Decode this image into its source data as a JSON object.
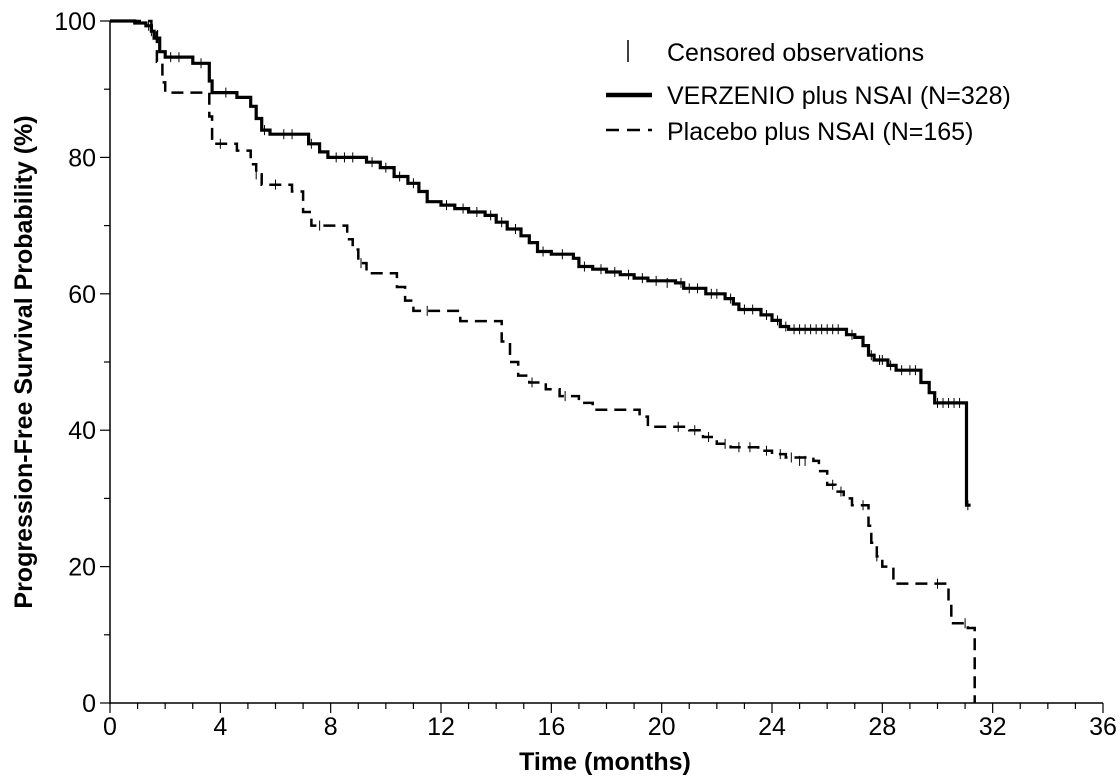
{
  "chart_data": {
    "type": "line",
    "title": "",
    "xlabel": "Time (months)",
    "ylabel": "Progression-Free Survival Probability (%)",
    "xlim": [
      0,
      36
    ],
    "ylim": [
      0,
      100
    ],
    "x_ticks": [
      "0",
      "4",
      "8",
      "12",
      "16",
      "20",
      "24",
      "28",
      "32",
      "36"
    ],
    "y_ticks": [
      "0",
      "20",
      "40",
      "60",
      "80",
      "100"
    ],
    "grid": false,
    "legend_position": "top-right",
    "legend": {
      "censor_label": "Censored observations",
      "series_labels": [
        "VERZENIO plus NSAI (N=328)",
        "Placebo plus NSAI (N=165)"
      ]
    },
    "series": [
      {
        "name": "VERZENIO plus NSAI (N=328)",
        "style": "solid",
        "color": "#000000",
        "points": [
          [
            0,
            100
          ],
          [
            0.5,
            100
          ],
          [
            0.9,
            99.7
          ],
          [
            1.3,
            99.3
          ],
          [
            1.5,
            98.5
          ],
          [
            1.6,
            97.5
          ],
          [
            1.8,
            95.5
          ],
          [
            2.0,
            94.7
          ],
          [
            2.8,
            94.7
          ],
          [
            3.0,
            93.8
          ],
          [
            3.5,
            93.8
          ],
          [
            3.6,
            91.2
          ],
          [
            3.7,
            89.5
          ],
          [
            4.5,
            89.5
          ],
          [
            4.6,
            88.8
          ],
          [
            5.0,
            88.8
          ],
          [
            5.1,
            87.5
          ],
          [
            5.3,
            85.7
          ],
          [
            5.5,
            84.0
          ],
          [
            5.8,
            83.4
          ],
          [
            7.0,
            83.4
          ],
          [
            7.2,
            82.0
          ],
          [
            7.6,
            80.8
          ],
          [
            7.9,
            80.0
          ],
          [
            9.0,
            80.0
          ],
          [
            9.3,
            79.3
          ],
          [
            9.8,
            78.5
          ],
          [
            10.3,
            77.2
          ],
          [
            10.8,
            76.2
          ],
          [
            11.2,
            75.0
          ],
          [
            11.5,
            73.5
          ],
          [
            12.0,
            73.0
          ],
          [
            12.5,
            72.5
          ],
          [
            13.0,
            72.0
          ],
          [
            13.6,
            71.5
          ],
          [
            14.0,
            70.5
          ],
          [
            14.4,
            69.5
          ],
          [
            14.9,
            68.5
          ],
          [
            15.2,
            67.5
          ],
          [
            15.5,
            66.2
          ],
          [
            16.0,
            65.8
          ],
          [
            16.8,
            65.2
          ],
          [
            17.0,
            64.0
          ],
          [
            17.5,
            63.6
          ],
          [
            18.0,
            63.2
          ],
          [
            18.5,
            62.8
          ],
          [
            19.0,
            62.3
          ],
          [
            19.5,
            61.9
          ],
          [
            20.5,
            61.6
          ],
          [
            20.8,
            60.8
          ],
          [
            21.6,
            60.0
          ],
          [
            22.3,
            59.3
          ],
          [
            22.6,
            58.5
          ],
          [
            22.8,
            57.7
          ],
          [
            23.6,
            56.9
          ],
          [
            24.0,
            56.1
          ],
          [
            24.3,
            55.2
          ],
          [
            24.6,
            54.8
          ],
          [
            26.5,
            54.8
          ],
          [
            26.7,
            54.0
          ],
          [
            27.0,
            53.6
          ],
          [
            27.3,
            52.4
          ],
          [
            27.5,
            51.0
          ],
          [
            27.7,
            50.3
          ],
          [
            28.2,
            49.5
          ],
          [
            28.5,
            48.8
          ],
          [
            29.3,
            48.8
          ],
          [
            29.4,
            47.0
          ],
          [
            29.7,
            45.5
          ],
          [
            29.9,
            44.0
          ],
          [
            31.0,
            44.0
          ],
          [
            31.05,
            29.0
          ],
          [
            31.2,
            29.0
          ]
        ],
        "censored": [
          [
            1.4,
            99.3
          ],
          [
            2.2,
            94.7
          ],
          [
            2.5,
            94.7
          ],
          [
            3.3,
            93.8
          ],
          [
            4.2,
            89.5
          ],
          [
            5.6,
            84.0
          ],
          [
            6.3,
            83.4
          ],
          [
            6.6,
            83.4
          ],
          [
            7.3,
            82.0
          ],
          [
            8.2,
            80.0
          ],
          [
            8.5,
            80.0
          ],
          [
            8.8,
            80.0
          ],
          [
            9.5,
            79.3
          ],
          [
            10.0,
            78.5
          ],
          [
            10.5,
            77.2
          ],
          [
            11.0,
            76.2
          ],
          [
            12.2,
            73.0
          ],
          [
            12.8,
            72.5
          ],
          [
            13.3,
            72.0
          ],
          [
            13.8,
            71.5
          ],
          [
            14.2,
            70.5
          ],
          [
            14.7,
            69.5
          ],
          [
            15.7,
            66.2
          ],
          [
            16.4,
            65.8
          ],
          [
            17.2,
            64.0
          ],
          [
            17.8,
            63.6
          ],
          [
            18.3,
            63.2
          ],
          [
            18.8,
            62.8
          ],
          [
            19.3,
            62.3
          ],
          [
            19.8,
            61.9
          ],
          [
            20.2,
            61.6
          ],
          [
            20.7,
            61.6
          ],
          [
            21.0,
            60.8
          ],
          [
            21.3,
            60.8
          ],
          [
            21.8,
            60.0
          ],
          [
            22.0,
            60.0
          ],
          [
            22.5,
            59.3
          ],
          [
            23.0,
            57.7
          ],
          [
            23.3,
            57.7
          ],
          [
            23.8,
            56.9
          ],
          [
            24.2,
            56.1
          ],
          [
            24.5,
            55.2
          ],
          [
            24.8,
            54.8
          ],
          [
            25.0,
            54.8
          ],
          [
            25.2,
            54.8
          ],
          [
            25.4,
            54.8
          ],
          [
            25.6,
            54.8
          ],
          [
            25.8,
            54.8
          ],
          [
            26.0,
            54.8
          ],
          [
            26.2,
            54.8
          ],
          [
            26.4,
            54.8
          ],
          [
            26.9,
            54.0
          ],
          [
            27.6,
            51.0
          ],
          [
            27.9,
            50.3
          ],
          [
            28.0,
            50.3
          ],
          [
            28.3,
            49.5
          ],
          [
            28.7,
            48.8
          ],
          [
            29.0,
            48.8
          ],
          [
            29.2,
            48.8
          ],
          [
            30.0,
            44.0
          ],
          [
            30.2,
            44.0
          ],
          [
            30.4,
            44.0
          ],
          [
            30.6,
            44.0
          ],
          [
            30.8,
            44.0
          ],
          [
            31.1,
            29.0
          ]
        ]
      },
      {
        "name": "Placebo plus NSAI (N=165)",
        "style": "dashed",
        "color": "#000000",
        "points": [
          [
            0,
            100
          ],
          [
            0.9,
            100
          ],
          [
            1.5,
            98.5
          ],
          [
            1.7,
            94.0
          ],
          [
            1.9,
            91.0
          ],
          [
            2.0,
            89.5
          ],
          [
            3.5,
            89.5
          ],
          [
            3.6,
            86.0
          ],
          [
            3.7,
            82.0
          ],
          [
            4.5,
            82.0
          ],
          [
            4.6,
            81.0
          ],
          [
            5.0,
            81.0
          ],
          [
            5.1,
            79.0
          ],
          [
            5.3,
            77.5
          ],
          [
            5.5,
            76.0
          ],
          [
            6.5,
            76.0
          ],
          [
            6.6,
            75.0
          ],
          [
            7.0,
            72.0
          ],
          [
            7.3,
            70.0
          ],
          [
            8.5,
            70.0
          ],
          [
            8.6,
            68.0
          ],
          [
            8.8,
            66.5
          ],
          [
            9.0,
            64.5
          ],
          [
            9.3,
            63.0
          ],
          [
            10.2,
            63.0
          ],
          [
            10.4,
            61.0
          ],
          [
            10.7,
            59.0
          ],
          [
            11.0,
            57.5
          ],
          [
            12.5,
            57.5
          ],
          [
            12.7,
            56.0
          ],
          [
            14.0,
            56.0
          ],
          [
            14.2,
            53.0
          ],
          [
            14.5,
            50.0
          ],
          [
            14.8,
            48.0
          ],
          [
            15.2,
            47.0
          ],
          [
            15.8,
            46.0
          ],
          [
            16.3,
            45.0
          ],
          [
            17.0,
            44.0
          ],
          [
            17.5,
            43.0
          ],
          [
            19.0,
            43.0
          ],
          [
            19.2,
            42.0
          ],
          [
            19.5,
            40.5
          ],
          [
            20.5,
            40.5
          ],
          [
            21.0,
            40.0
          ],
          [
            21.5,
            39.0
          ],
          [
            22.0,
            38.0
          ],
          [
            22.5,
            37.5
          ],
          [
            23.5,
            37.0
          ],
          [
            24.0,
            36.5
          ],
          [
            24.5,
            36.0
          ],
          [
            25.5,
            35.5
          ],
          [
            25.7,
            34.0
          ],
          [
            26.0,
            32.0
          ],
          [
            26.3,
            31.0
          ],
          [
            26.6,
            30.0
          ],
          [
            26.9,
            29.0
          ],
          [
            27.4,
            29.0
          ],
          [
            27.5,
            26.0
          ],
          [
            27.6,
            23.5
          ],
          [
            27.8,
            21.5
          ],
          [
            28.0,
            20.0
          ],
          [
            28.4,
            17.5
          ],
          [
            29.8,
            17.5
          ],
          [
            30.3,
            17.5
          ],
          [
            30.4,
            14.5
          ],
          [
            30.5,
            11.7
          ],
          [
            31.0,
            11.7
          ],
          [
            31.1,
            11.0
          ],
          [
            31.3,
            11.0
          ],
          [
            31.35,
            0
          ]
        ],
        "censored": [
          [
            1.5,
            98.5
          ],
          [
            4.0,
            82.0
          ],
          [
            5.3,
            77.5
          ],
          [
            6.0,
            76.0
          ],
          [
            7.6,
            70.0
          ],
          [
            9.1,
            64.5
          ],
          [
            11.5,
            57.5
          ],
          [
            15.3,
            47.0
          ],
          [
            16.5,
            45.0
          ],
          [
            20.6,
            40.5
          ],
          [
            21.2,
            40.0
          ],
          [
            21.7,
            39.0
          ],
          [
            22.3,
            38.0
          ],
          [
            22.8,
            37.5
          ],
          [
            23.2,
            37.5
          ],
          [
            23.8,
            37.0
          ],
          [
            24.3,
            36.5
          ],
          [
            24.7,
            36.0
          ],
          [
            25.0,
            35.5
          ],
          [
            25.2,
            35.5
          ],
          [
            26.2,
            32.0
          ],
          [
            26.5,
            31.0
          ],
          [
            27.3,
            29.0
          ],
          [
            27.8,
            21.5
          ],
          [
            30.0,
            17.5
          ],
          [
            31.0,
            11.7
          ]
        ]
      }
    ]
  }
}
